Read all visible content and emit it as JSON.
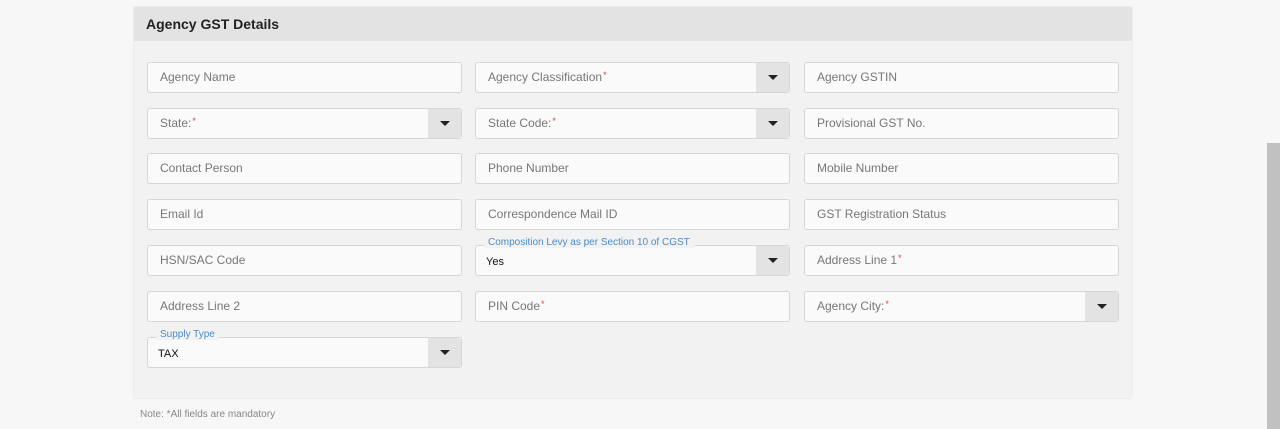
{
  "panel": {
    "title": "Agency GST Details"
  },
  "fields": [
    {
      "label": "Agency Name",
      "required": false,
      "dropdown": false
    },
    {
      "label": "Agency Classification",
      "required": true,
      "dropdown": true
    },
    {
      "label": "Agency GSTIN",
      "required": false,
      "dropdown": false
    },
    {
      "label": "State:",
      "required": true,
      "dropdown": true
    },
    {
      "label": "State Code:",
      "required": true,
      "dropdown": true
    },
    {
      "label": "Provisional GST No.",
      "required": false,
      "dropdown": false
    },
    {
      "label": "Contact Person",
      "required": false,
      "dropdown": false
    },
    {
      "label": "Phone Number",
      "required": false,
      "dropdown": false
    },
    {
      "label": "Mobile Number",
      "required": false,
      "dropdown": false
    },
    {
      "label": "Email Id",
      "required": false,
      "dropdown": false
    },
    {
      "label": "Correspondence Mail ID",
      "required": false,
      "dropdown": false
    },
    {
      "label": "GST Registration Status",
      "required": false,
      "dropdown": false
    },
    {
      "label": "HSN/SAC Code",
      "required": false,
      "dropdown": false
    },
    {
      "legend": "Composition Levy as per Section 10 of CGST",
      "value": "Yes",
      "dropdown": true
    },
    {
      "label": "Address Line 1",
      "required": true,
      "dropdown": false
    },
    {
      "label": "Address Line 2",
      "required": false,
      "dropdown": false
    },
    {
      "label": "PIN Code",
      "required": true,
      "dropdown": false
    },
    {
      "label": "Agency City:",
      "required": true,
      "dropdown": true
    },
    {
      "legend": "Supply Type",
      "value": "TAX",
      "dropdown": true
    }
  ],
  "required_marker": "*",
  "note": "Note:  *All fields are mandatory",
  "colors": {
    "accent": "#4a8cc7",
    "required": "#e04040"
  }
}
